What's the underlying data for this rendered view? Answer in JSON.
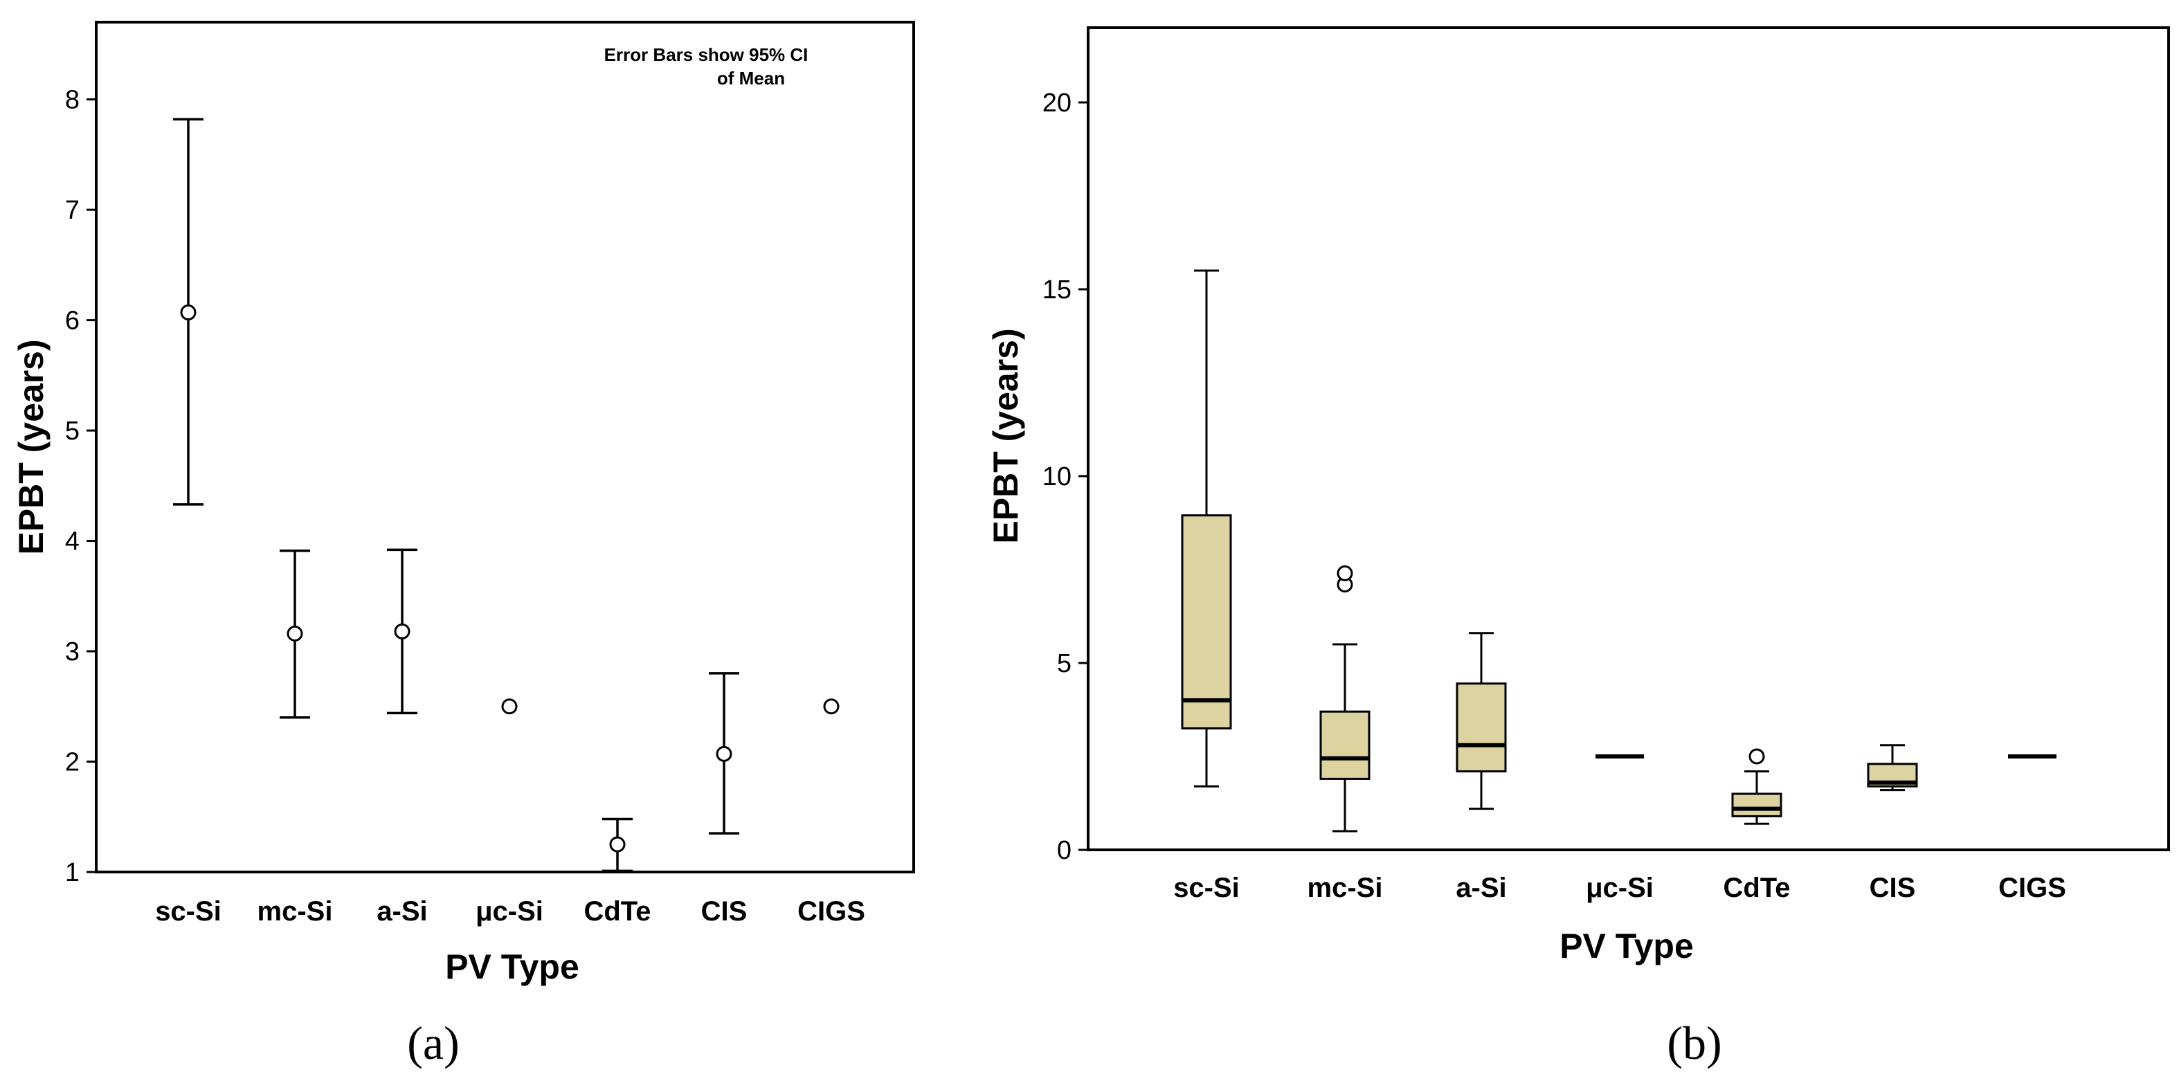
{
  "chart_data": [
    {
      "panel": "a",
      "type": "errorbar",
      "panel_label": "(a)",
      "xlabel": "PV Type",
      "ylabel": "EPBT (years)",
      "ylim": [
        1,
        8.7
      ],
      "yticks": [
        1,
        2,
        3,
        4,
        5,
        6,
        7,
        8
      ],
      "annotation_line1": "Error Bars show 95% CI",
      "annotation_line2": "of Mean",
      "categories": [
        "sc-Si",
        "mc-Si",
        "a-Si",
        "μc-Si",
        "CdTe",
        "CIS",
        "CIGS"
      ],
      "means": [
        6.07,
        3.16,
        3.18,
        2.5,
        1.25,
        2.07,
        2.5
      ],
      "ci_low": [
        4.33,
        2.4,
        2.44,
        null,
        1.01,
        1.35,
        null
      ],
      "ci_high": [
        7.82,
        3.91,
        3.92,
        null,
        1.48,
        2.8,
        null
      ]
    },
    {
      "panel": "b",
      "type": "boxplot",
      "panel_label": "(b)",
      "xlabel": "PV Type",
      "ylabel": "EPBT (years)",
      "ylim": [
        0,
        22
      ],
      "yticks": [
        0,
        5,
        10,
        15,
        20
      ],
      "categories": [
        "sc-Si",
        "mc-Si",
        "a-Si",
        "μc-Si",
        "CdTe",
        "CIS",
        "CIGS"
      ],
      "box_color": "#DDD3A0",
      "boxes": [
        {
          "whisker_low": 1.7,
          "q1": 3.25,
          "median": 4.0,
          "q3": 8.95,
          "whisker_high": 15.5,
          "outliers": []
        },
        {
          "whisker_low": 0.5,
          "q1": 1.9,
          "median": 2.45,
          "q3": 3.7,
          "whisker_high": 5.5,
          "outliers": [
            7.1,
            7.4
          ]
        },
        {
          "whisker_low": 1.1,
          "q1": 2.1,
          "median": 2.8,
          "q3": 4.45,
          "whisker_high": 5.8,
          "outliers": []
        },
        {
          "whisker_low": 2.5,
          "q1": 2.5,
          "median": 2.5,
          "q3": 2.5,
          "whisker_high": 2.5,
          "outliers": []
        },
        {
          "whisker_low": 0.7,
          "q1": 0.9,
          "median": 1.1,
          "q3": 1.5,
          "whisker_high": 2.1,
          "outliers": [
            2.5
          ]
        },
        {
          "whisker_low": 1.6,
          "q1": 1.7,
          "median": 1.8,
          "q3": 2.3,
          "whisker_high": 2.8,
          "outliers": []
        },
        {
          "whisker_low": 2.5,
          "q1": 2.5,
          "median": 2.5,
          "q3": 2.5,
          "whisker_high": 2.5,
          "outliers": []
        }
      ]
    }
  ]
}
